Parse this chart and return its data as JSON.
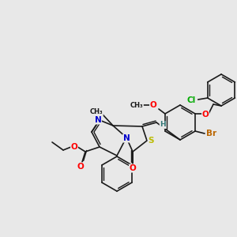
{
  "background_color": "#e8e8e8",
  "bond_color": "#1a1a1a",
  "atom_colors": {
    "O": "#ff0000",
    "N": "#0000cc",
    "S": "#bbbb00",
    "Br": "#bb6600",
    "Cl": "#00aa00",
    "H": "#337777",
    "C": "#1a1a1a"
  },
  "figsize": [
    3.0,
    3.0
  ],
  "dpi": 100,
  "lw": 1.2,
  "fs": 7.5
}
